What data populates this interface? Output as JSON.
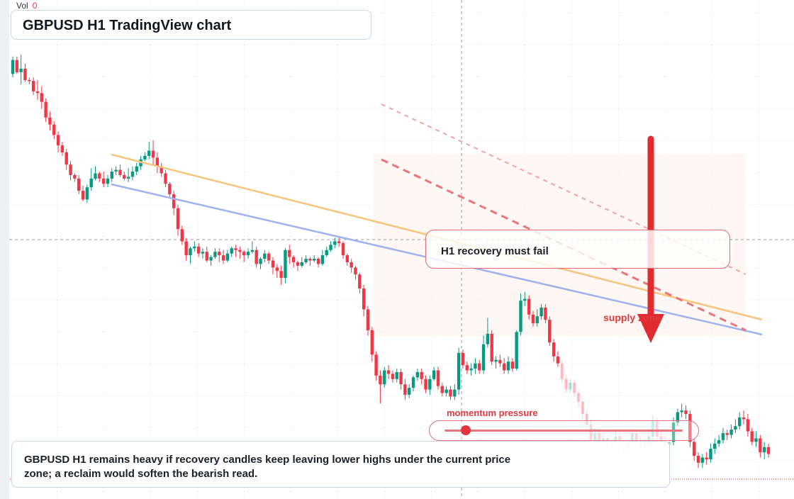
{
  "header": {
    "vol_label": "Vol",
    "vol_value": "0",
    "title": "GBPUSD H1 TradingView chart"
  },
  "annotations": {
    "callout": "H1 recovery must fail",
    "zone_label": "supply zone",
    "momentum_label": "momentum pressure",
    "momentum_level": 0.09,
    "summary": "GBPUSD H1 remains heavy if recovery candles keep leaving lower highs under the current price zone; a reclaim would soften the bearish read."
  },
  "colors": {
    "up": "#089981",
    "down": "#f23645",
    "trendline_orange": "#f7c47e",
    "trendline_blue": "#9eb2ee",
    "projection": "#e8757b",
    "arrow": "#e02b30"
  },
  "chart_data": {
    "type": "candlestick",
    "symbol": "GBPUSD",
    "timeframe": "H1",
    "x_axis_labels_visible": false,
    "y_axis_labels_visible": false,
    "candles_ohlc": [
      [
        190,
        206,
        186,
        210
      ],
      [
        206,
        192,
        190,
        210
      ],
      [
        192,
        196,
        178,
        212
      ],
      [
        196,
        183,
        181,
        202
      ],
      [
        183,
        182,
        178,
        186
      ],
      [
        182,
        170,
        166,
        186
      ],
      [
        170,
        168,
        160,
        183
      ],
      [
        168,
        158,
        150,
        176
      ],
      [
        158,
        140,
        135,
        162
      ],
      [
        140,
        132,
        125,
        147
      ],
      [
        132,
        120,
        115,
        136
      ],
      [
        120,
        108,
        100,
        124
      ],
      [
        108,
        100,
        96,
        112
      ],
      [
        100,
        86,
        80,
        104
      ],
      [
        86,
        74,
        68,
        90
      ],
      [
        74,
        70,
        66,
        76
      ],
      [
        70,
        56,
        52,
        74
      ],
      [
        56,
        46,
        44,
        62
      ],
      [
        46,
        60,
        42,
        63
      ],
      [
        60,
        70,
        56,
        82
      ],
      [
        70,
        76,
        68,
        84
      ],
      [
        76,
        70,
        66,
        78
      ],
      [
        70,
        64,
        60,
        78
      ],
      [
        64,
        70,
        60,
        74
      ],
      [
        70,
        78,
        66,
        82
      ],
      [
        78,
        80,
        74,
        84
      ],
      [
        80,
        74,
        72,
        86
      ],
      [
        74,
        70,
        68,
        78
      ],
      [
        70,
        72,
        66,
        82
      ],
      [
        72,
        78,
        68,
        84
      ],
      [
        78,
        84,
        74,
        88
      ],
      [
        84,
        92,
        80,
        96
      ],
      [
        92,
        96,
        90,
        100
      ],
      [
        96,
        102,
        92,
        112
      ],
      [
        102,
        94,
        86,
        114
      ],
      [
        94,
        84,
        76,
        100
      ],
      [
        84,
        76,
        72,
        88
      ],
      [
        76,
        64,
        60,
        80
      ],
      [
        64,
        52,
        48,
        66
      ],
      [
        52,
        36,
        28,
        56
      ],
      [
        36,
        12,
        4,
        40
      ],
      [
        12,
        -2,
        -6,
        16
      ],
      [
        -2,
        -18,
        -24,
        2
      ],
      [
        -18,
        -10,
        -28,
        -8
      ],
      [
        -10,
        -8,
        -14,
        -2
      ],
      [
        -8,
        -16,
        -20,
        -4
      ],
      [
        -16,
        -14,
        -22,
        -10
      ],
      [
        -14,
        -24,
        -26,
        -8
      ],
      [
        -24,
        -20,
        -30,
        -18
      ],
      [
        -20,
        -14,
        -22,
        -10
      ],
      [
        -14,
        -18,
        -26,
        -10
      ],
      [
        -18,
        -24,
        -28,
        -12
      ],
      [
        -24,
        -16,
        -26,
        -12
      ],
      [
        -16,
        -10,
        -20,
        -8
      ],
      [
        -10,
        -12,
        -20,
        -6
      ],
      [
        -12,
        -14,
        -22,
        -8
      ],
      [
        -14,
        -18,
        -26,
        -12
      ],
      [
        -18,
        -14,
        -22,
        -10
      ],
      [
        -14,
        -12,
        -16,
        -2
      ],
      [
        -12,
        -28,
        -32,
        -8
      ],
      [
        -28,
        -22,
        -34,
        -20
      ],
      [
        -22,
        -16,
        -26,
        -12
      ],
      [
        -16,
        -24,
        -28,
        -14
      ],
      [
        -24,
        -32,
        -40,
        -20
      ],
      [
        -32,
        -36,
        -44,
        -28
      ],
      [
        -36,
        -44,
        -52,
        -30
      ],
      [
        -44,
        -12,
        -50,
        -10
      ],
      [
        -12,
        -20,
        -28,
        -6
      ],
      [
        -20,
        -26,
        -32,
        -18
      ],
      [
        -26,
        -30,
        -36,
        -24
      ],
      [
        -30,
        -26,
        -32,
        -20
      ],
      [
        -26,
        -22,
        -28,
        -18
      ],
      [
        -22,
        -24,
        -30,
        -20
      ],
      [
        -24,
        -22,
        -26,
        -18
      ],
      [
        -22,
        -28,
        -32,
        -20
      ],
      [
        -28,
        -18,
        -30,
        -12
      ],
      [
        -18,
        -12,
        -20,
        -8
      ],
      [
        -12,
        -6,
        -14,
        -2
      ],
      [
        -6,
        -2,
        -10,
        2
      ],
      [
        -2,
        -4,
        -8,
        4
      ],
      [
        -4,
        -18,
        -22,
        -2
      ],
      [
        -18,
        -26,
        -30,
        -16
      ],
      [
        -26,
        -32,
        -38,
        -22
      ],
      [
        -32,
        -40,
        -46,
        -30
      ],
      [
        -40,
        -56,
        -62,
        -38
      ],
      [
        -56,
        -80,
        -88,
        -52
      ],
      [
        -80,
        -104,
        -110,
        -76
      ],
      [
        -104,
        -132,
        -140,
        -100
      ],
      [
        -132,
        -156,
        -162,
        -128
      ],
      [
        -156,
        -166,
        -188,
        -150
      ],
      [
        -166,
        -150,
        -170,
        -146
      ],
      [
        -150,
        -154,
        -160,
        -144
      ],
      [
        -154,
        -160,
        -164,
        -150
      ],
      [
        -160,
        -152,
        -164,
        -148
      ],
      [
        -152,
        -166,
        -172,
        -148
      ],
      [
        -166,
        -178,
        -184,
        -160
      ],
      [
        -178,
        -170,
        -182,
        -166
      ],
      [
        -170,
        -158,
        -174,
        -156
      ],
      [
        -158,
        -152,
        -162,
        -148
      ],
      [
        -152,
        -160,
        -166,
        -148
      ],
      [
        -160,
        -172,
        -176,
        -156
      ],
      [
        -172,
        -160,
        -178,
        -156
      ],
      [
        -160,
        -150,
        -162,
        -146
      ],
      [
        -150,
        -168,
        -172,
        -146
      ],
      [
        -168,
        -176,
        -180,
        -164
      ],
      [
        -176,
        -172,
        -180,
        -168
      ],
      [
        -172,
        -180,
        -184,
        -168
      ],
      [
        -180,
        -172,
        -184,
        -166
      ],
      [
        -172,
        -130,
        -178,
        -124
      ],
      [
        -130,
        -144,
        -148,
        -126
      ],
      [
        -144,
        -150,
        -154,
        -140
      ],
      [
        -150,
        -148,
        -156,
        -142
      ],
      [
        -148,
        -142,
        -154,
        -136
      ],
      [
        -142,
        -150,
        -154,
        -138
      ],
      [
        -150,
        -120,
        -154,
        -110
      ],
      [
        -120,
        -108,
        -124,
        -90
      ],
      [
        -108,
        -140,
        -144,
        -104
      ],
      [
        -140,
        -138,
        -148,
        -134
      ],
      [
        -138,
        -142,
        -146,
        -132
      ],
      [
        -142,
        -150,
        -154,
        -136
      ],
      [
        -150,
        -140,
        -154,
        -134
      ],
      [
        -140,
        -148,
        -152,
        -136
      ],
      [
        -148,
        -106,
        -150,
        -104
      ],
      [
        -106,
        -70,
        -110,
        -62
      ],
      [
        -70,
        -68,
        -76,
        -60
      ],
      [
        -68,
        -86,
        -92,
        -64
      ],
      [
        -86,
        -96,
        -100,
        -82
      ],
      [
        -96,
        -88,
        -100,
        -80
      ],
      [
        -88,
        -78,
        -92,
        -74
      ],
      [
        -78,
        -92,
        -96,
        -74
      ],
      [
        -92,
        -118,
        -122,
        -88
      ],
      [
        -118,
        -134,
        -140,
        -114
      ],
      [
        -134,
        -142,
        -146,
        -128
      ],
      [
        -142,
        -160,
        -164,
        -138
      ],
      [
        -160,
        -172,
        -176,
        -156
      ],
      [
        -172,
        -164,
        -176,
        -160
      ],
      [
        -164,
        -176,
        -180,
        -160
      ],
      [
        -176,
        -186,
        -192,
        -172
      ],
      [
        -186,
        -200,
        -206,
        -182
      ],
      [
        -200,
        -212,
        -218,
        -196
      ],
      [
        -212,
        -230,
        -236,
        -206
      ],
      [
        -230,
        -222,
        -236,
        -216
      ],
      [
        -222,
        -232,
        -238,
        -218
      ],
      [
        -232,
        -228,
        -238,
        -222
      ],
      [
        -228,
        -240,
        -246,
        -224
      ],
      [
        -240,
        -234,
        -244,
        -230
      ],
      [
        -234,
        -226,
        -240,
        -220
      ],
      [
        -226,
        -236,
        -242,
        -220
      ],
      [
        -236,
        -244,
        -250,
        -230
      ],
      [
        -244,
        -232,
        -248,
        -228
      ],
      [
        -232,
        -222,
        -238,
        -216
      ],
      [
        -222,
        -230,
        -236,
        -218
      ],
      [
        -230,
        -240,
        -246,
        -226
      ],
      [
        -240,
        -236,
        -244,
        -228
      ],
      [
        -236,
        -226,
        -240,
        -220
      ],
      [
        -226,
        -208,
        -230,
        -202
      ],
      [
        -208,
        -226,
        -230,
        -204
      ],
      [
        -226,
        -232,
        -236,
        -220
      ],
      [
        -232,
        -236,
        -242,
        -226
      ],
      [
        -236,
        -232,
        -244,
        -228
      ],
      [
        -232,
        -210,
        -236,
        -204
      ],
      [
        -210,
        -198,
        -214,
        -194
      ],
      [
        -198,
        -196,
        -204,
        -188
      ],
      [
        -196,
        -200,
        -206,
        -190
      ],
      [
        -200,
        -232,
        -238,
        -196
      ],
      [
        -232,
        -248,
        -254,
        -228
      ],
      [
        -248,
        -256,
        -262,
        -244
      ],
      [
        -256,
        -250,
        -262,
        -246
      ],
      [
        -250,
        -252,
        -258,
        -244
      ],
      [
        -252,
        -240,
        -256,
        -234
      ],
      [
        -240,
        -234,
        -246,
        -228
      ],
      [
        -234,
        -230,
        -238,
        -224
      ],
      [
        -230,
        -222,
        -234,
        -216
      ],
      [
        -222,
        -224,
        -230,
        -218
      ],
      [
        -224,
        -218,
        -228,
        -212
      ],
      [
        -218,
        -214,
        -222,
        -206
      ],
      [
        -214,
        -204,
        -218,
        -198
      ],
      [
        -204,
        -206,
        -212,
        -196
      ],
      [
        -206,
        -220,
        -226,
        -200
      ],
      [
        -220,
        -232,
        -236,
        -216
      ],
      [
        -232,
        -228,
        -238,
        -220
      ],
      [
        -228,
        -244,
        -250,
        -224
      ],
      [
        -244,
        -238,
        -252,
        -232
      ],
      [
        -238,
        -246,
        -250,
        -234
      ]
    ],
    "trendlines": [
      "orange descending line",
      "blue descending line",
      "red dashed projection lines"
    ],
    "grid": true
  }
}
